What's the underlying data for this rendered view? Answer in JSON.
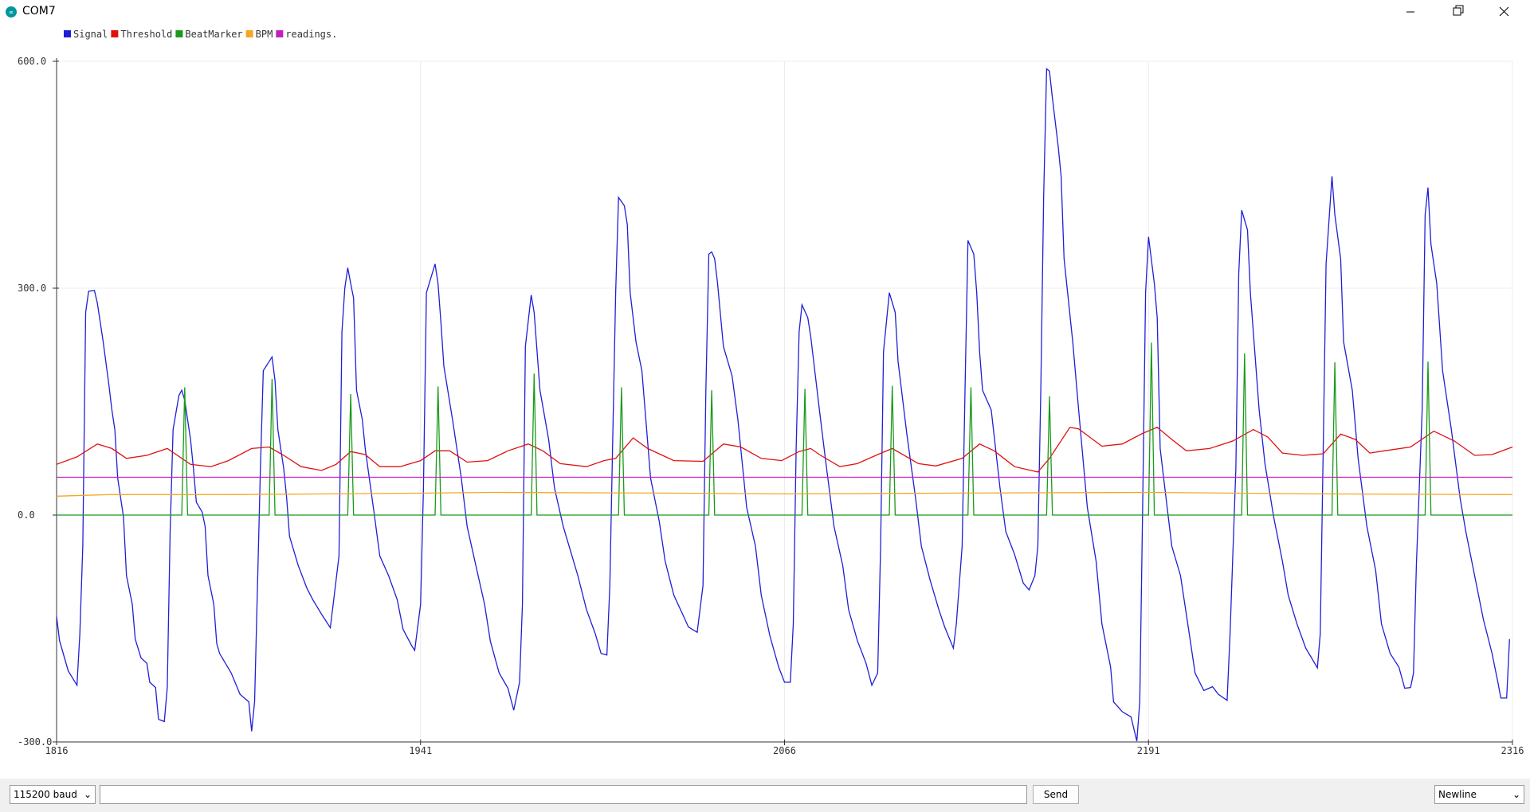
{
  "window": {
    "title": "COM7"
  },
  "chart_data": {
    "type": "line",
    "xlim": [
      1816,
      2316
    ],
    "xticks": [
      1816,
      1941,
      2066,
      2191,
      2316
    ],
    "ylim": [
      -300,
      600
    ],
    "yticks": [
      {
        "value": -300,
        "label": "-300.0"
      },
      {
        "value": 0,
        "label": "0.0"
      },
      {
        "value": 300,
        "label": "300.0"
      },
      {
        "value": 600,
        "label": "600.0"
      }
    ],
    "grid": true,
    "legend": "top-left",
    "series": [
      {
        "name": "Signal",
        "color": "#1f1fd6",
        "x": [
          1816,
          1817,
          1820,
          1823,
          1824,
          1825,
          1826,
          1827,
          1829,
          1830,
          1832,
          1834,
          1835,
          1836,
          1837,
          1839,
          1840,
          1842,
          1843,
          1845,
          1847,
          1848,
          1850,
          1851,
          1853,
          1854,
          1855,
          1856,
          1858,
          1859,
          1860,
          1862,
          1863,
          1864,
          1866,
          1867,
          1868,
          1870,
          1871,
          1872,
          1874,
          1876,
          1879,
          1882,
          1883,
          1884,
          1886,
          1887,
          1889,
          1890,
          1891,
          1892,
          1894,
          1895,
          1896,
          1899,
          1902,
          1904,
          1907,
          1910,
          1911,
          1913,
          1914,
          1915,
          1916,
          1917,
          1918,
          1919,
          1921,
          1922,
          1925,
          1927,
          1930,
          1933,
          1935,
          1938,
          1939,
          1941,
          1942,
          1943,
          1946,
          1947,
          1948,
          1949,
          1952,
          1955,
          1957,
          1960,
          1963,
          1965,
          1968,
          1971,
          1973,
          1975,
          1976,
          1977,
          1979,
          1980,
          1982,
          1985,
          1987,
          1990,
          1993,
          1995,
          1998,
          2001,
          2003,
          2005,
          2006,
          2007,
          2008,
          2009,
          2011,
          2012,
          2013,
          2015,
          2017,
          2020,
          2023,
          2025,
          2028,
          2031,
          2033,
          2036,
          2038,
          2039,
          2040,
          2041,
          2042,
          2043,
          2045,
          2048,
          2050,
          2053,
          2056,
          2058,
          2061,
          2064,
          2066,
          2068,
          2069,
          2070,
          2071,
          2072,
          2074,
          2075,
          2078,
          2080,
          2083,
          2086,
          2088,
          2091,
          2094,
          2096,
          2098,
          2099,
          2100,
          2102,
          2104,
          2105,
          2108,
          2111,
          2113,
          2116,
          2119,
          2121,
          2124,
          2125,
          2127,
          2128,
          2129,
          2131,
          2132,
          2133,
          2134,
          2137,
          2140,
          2142,
          2145,
          2148,
          2150,
          2152,
          2153,
          2154,
          2155,
          2156,
          2157,
          2158,
          2160,
          2161,
          2162,
          2165,
          2167,
          2170,
          2173,
          2175,
          2178,
          2179,
          2182,
          2185,
          2187,
          2188,
          2189,
          2190,
          2191,
          2193,
          2194,
          2195,
          2197,
          2199,
          2202,
          2205,
          2207,
          2210,
          2213,
          2215,
          2218,
          2219,
          2221,
          2222,
          2223,
          2225,
          2226,
          2229,
          2231,
          2234,
          2237,
          2239,
          2242,
          2245,
          2247,
          2249,
          2250,
          2251,
          2252,
          2254,
          2255,
          2257,
          2258,
          2261,
          2263,
          2266,
          2269,
          2271,
          2274,
          2277,
          2279,
          2281,
          2282,
          2283,
          2285,
          2286,
          2287,
          2288,
          2290,
          2292,
          2295,
          2298,
          2300,
          2303,
          2306,
          2309,
          2311,
          2312,
          2314,
          2315
        ],
        "values": [
          -134,
          -166,
          -206,
          -225,
          -157,
          -41,
          268,
          296,
          297,
          280,
          229,
          171,
          139,
          113,
          49,
          -3,
          -80,
          -118,
          -164,
          -189,
          -196,
          -221,
          -228,
          -270,
          -273,
          -228,
          -22,
          113,
          158,
          165,
          152,
          100,
          62,
          17,
          4,
          -15,
          -80,
          -118,
          -170,
          -183,
          -196,
          -209,
          -237,
          -247,
          -286,
          -247,
          62,
          191,
          203,
          209,
          178,
          113,
          62,
          23,
          -28,
          -67,
          -97,
          -112,
          -131,
          -149,
          -118,
          -54,
          242,
          300,
          327,
          306,
          287,
          165,
          126,
          88,
          4,
          -54,
          -80,
          -112,
          -151,
          -173,
          -179,
          -118,
          36,
          294,
          332,
          306,
          255,
          197,
          126,
          49,
          -15,
          -67,
          -118,
          -167,
          -209,
          -229,
          -258,
          -221,
          -118,
          223,
          291,
          268,
          165,
          100,
          36,
          -15,
          -54,
          -80,
          -125,
          -157,
          -183,
          -185,
          -93,
          100,
          294,
          420,
          409,
          384,
          294,
          229,
          191,
          49,
          -9,
          -61,
          -106,
          -131,
          -148,
          -155,
          -93,
          165,
          345,
          348,
          339,
          306,
          223,
          184,
          126,
          10,
          -41,
          -106,
          -160,
          -201,
          -221,
          -221,
          -144,
          88,
          242,
          278,
          261,
          236,
          139,
          75,
          -15,
          -67,
          -125,
          -166,
          -196,
          -225,
          -209,
          -41,
          216,
          294,
          268,
          203,
          107,
          23,
          -41,
          -86,
          -125,
          -148,
          -176,
          -144,
          -41,
          165,
          363,
          345,
          294,
          216,
          165,
          139,
          36,
          -22,
          -52,
          -90,
          -99,
          -80,
          -41,
          165,
          422,
          590,
          587,
          551,
          487,
          448,
          339,
          229,
          139,
          10,
          -61,
          -144,
          -201,
          -247,
          -260,
          -267,
          -299,
          -247,
          10,
          294,
          368,
          306,
          261,
          88,
          23,
          -41,
          -80,
          -157,
          -209,
          -232,
          -227,
          -237,
          -245,
          -157,
          62,
          319,
          403,
          377,
          294,
          139,
          68,
          -3,
          -61,
          -106,
          -144,
          -176,
          -189,
          -202,
          -157,
          88,
          332,
          448,
          397,
          339,
          229,
          165,
          75,
          -15,
          -73,
          -144,
          -183,
          -201,
          -229,
          -228,
          -209,
          -67,
          139,
          397,
          433,
          358,
          306,
          191,
          113,
          23,
          -22,
          -80,
          -138,
          -183,
          -221,
          -242,
          -242,
          -164
        ]
      },
      {
        "name": "Threshold",
        "color": "#e01010",
        "x": [
          1816,
          1823,
          1830,
          1835,
          1840,
          1847,
          1854,
          1862,
          1869,
          1875,
          1883,
          1889,
          1894,
          1900,
          1907,
          1912,
          1917,
          1922,
          1927,
          1934,
          1941,
          1946,
          1951,
          1957,
          1964,
          1971,
          1978,
          1983,
          1989,
          1998,
          2004,
          2008,
          2014,
          2019,
          2028,
          2038,
          2045,
          2051,
          2058,
          2065,
          2071,
          2075,
          2078,
          2085,
          2091,
          2098,
          2103,
          2112,
          2118,
          2127,
          2133,
          2138,
          2145,
          2153,
          2157,
          2164,
          2167,
          2175,
          2182,
          2189,
          2194,
          2199,
          2204,
          2212,
          2220,
          2227,
          2232,
          2237,
          2244,
          2251,
          2257,
          2262,
          2267,
          2272,
          2281,
          2289,
          2296,
          2303,
          2309,
          2316
        ],
        "values": [
          67,
          77,
          94,
          88,
          75,
          79,
          88,
          67,
          64,
          72,
          88,
          90,
          79,
          64,
          59,
          67,
          84,
          80,
          64,
          64,
          72,
          85,
          85,
          70,
          72,
          85,
          94,
          85,
          68,
          64,
          72,
          75,
          102,
          88,
          72,
          71,
          94,
          90,
          75,
          72,
          84,
          88,
          80,
          64,
          68,
          80,
          88,
          68,
          65,
          75,
          94,
          85,
          64,
          57,
          75,
          116,
          114,
          91,
          94,
          108,
          116,
          100,
          85,
          88,
          98,
          113,
          103,
          82,
          79,
          81,
          107,
          100,
          82,
          85,
          90,
          111,
          98,
          79,
          80,
          90
        ]
      },
      {
        "name": "BeatMarker",
        "color": "#1a9a1a",
        "x": [
          1816,
          1859,
          1860,
          1861,
          1889,
          1890,
          1891,
          1916,
          1917,
          1918,
          1946,
          1947,
          1948,
          1979,
          1980,
          1981,
          2009,
          2010,
          2011,
          2040,
          2041,
          2042,
          2072,
          2073,
          2074,
          2102,
          2103,
          2104,
          2129,
          2130,
          2131,
          2156,
          2157,
          2158,
          2191,
          2192,
          2193,
          2223,
          2224,
          2225,
          2254,
          2255,
          2256,
          2286,
          2287,
          2288,
          2316
        ],
        "values": [
          0,
          0,
          169,
          0,
          0,
          180,
          0,
          0,
          160,
          0,
          0,
          170,
          0,
          0,
          187,
          0,
          0,
          169,
          0,
          0,
          165,
          0,
          0,
          167,
          0,
          0,
          171,
          0,
          0,
          169,
          0,
          0,
          157,
          0,
          0,
          228,
          0,
          0,
          214,
          0,
          0,
          202,
          0,
          0,
          203,
          0,
          0
        ]
      },
      {
        "name": "BPM",
        "color": "#f5a623",
        "x": [
          1816,
          1834,
          1875,
          1941,
          1966,
          2030,
          2066,
          2120,
          2191,
          2250,
          2316
        ],
        "values": [
          25,
          27,
          27,
          29,
          30,
          29,
          28,
          29,
          30,
          28,
          27
        ]
      },
      {
        "name": "readings.",
        "color": "#c21fc2",
        "x": [
          1816,
          2316
        ],
        "values": [
          50,
          50
        ]
      }
    ]
  },
  "controls": {
    "baud": "115200 baud",
    "send": "Send",
    "line_ending": "Newline"
  }
}
